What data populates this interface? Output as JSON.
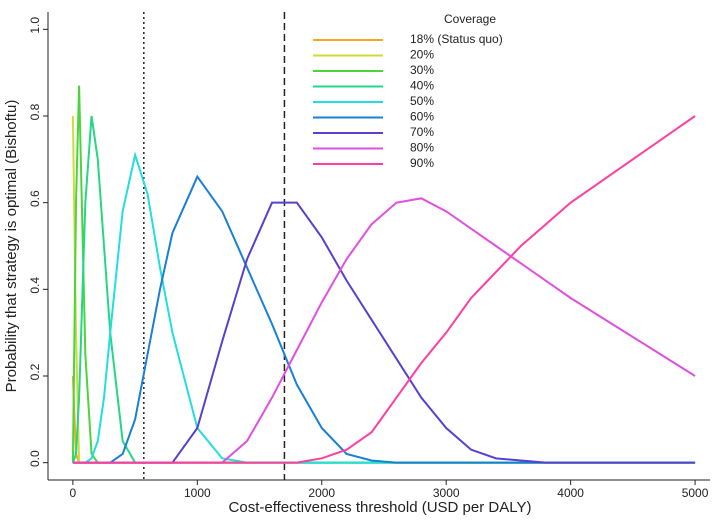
{
  "chart_data": {
    "type": "line",
    "xlabel": "Cost-effectiveness threshold (USD per DALY)",
    "ylabel": "Probability that strategy is optimal (Bishoftu)",
    "legend_title": "Coverage",
    "legend_position": "top-right",
    "x": [
      0,
      25,
      50,
      100,
      150,
      200,
      250,
      300,
      400,
      500,
      600,
      700,
      800,
      1000,
      1200,
      1400,
      1600,
      1800,
      2000,
      2200,
      2400,
      2600,
      2800,
      3000,
      3200,
      3400,
      3600,
      3800,
      4000,
      4500,
      5000
    ],
    "xlim": [
      -200,
      5120
    ],
    "xticks": [
      0,
      1000,
      2000,
      3000,
      4000,
      5000
    ],
    "ylim": [
      -0.04,
      1.04
    ],
    "yticks": [
      {
        "value": 0,
        "label": "0.0"
      },
      {
        "value": 0.2,
        "label": "0.2"
      },
      {
        "value": 0.4,
        "label": "0.4"
      },
      {
        "value": 0.6,
        "label": "0.6"
      },
      {
        "value": 0.8,
        "label": "0.8"
      },
      {
        "value": 1,
        "label": "1.0"
      }
    ],
    "vlines": [
      {
        "value": 570,
        "style": "dotted"
      },
      {
        "value": 1700,
        "style": "dashed"
      }
    ],
    "series": [
      {
        "name": "18% (Status quo)",
        "color": "#f5a623",
        "values": [
          0.2,
          0.02,
          0,
          0,
          0,
          0,
          0,
          0,
          0,
          0,
          0,
          0,
          0,
          0,
          0,
          0,
          0,
          0,
          0,
          0,
          0,
          0,
          0,
          0,
          0,
          0,
          0,
          0,
          0,
          0,
          0
        ]
      },
      {
        "name": "20%",
        "color": "#cddc39",
        "values": [
          0.8,
          0.3,
          0,
          0,
          0,
          0,
          0,
          0,
          0,
          0,
          0,
          0,
          0,
          0,
          0,
          0,
          0,
          0,
          0,
          0,
          0,
          0,
          0,
          0,
          0,
          0,
          0,
          0,
          0,
          0,
          0
        ]
      },
      {
        "name": "30%",
        "color": "#4cd43a",
        "values": [
          0,
          0.6,
          0.87,
          0.25,
          0.02,
          0,
          0,
          0,
          0,
          0,
          0,
          0,
          0,
          0,
          0,
          0,
          0,
          0,
          0,
          0,
          0,
          0,
          0,
          0,
          0,
          0,
          0,
          0,
          0,
          0,
          0
        ]
      },
      {
        "name": "40%",
        "color": "#22d884",
        "values": [
          0,
          0.02,
          0.15,
          0.6,
          0.8,
          0.7,
          0.5,
          0.3,
          0.05,
          0,
          0,
          0,
          0,
          0,
          0,
          0,
          0,
          0,
          0,
          0,
          0,
          0,
          0,
          0,
          0,
          0,
          0,
          0,
          0,
          0,
          0
        ]
      },
      {
        "name": "50%",
        "color": "#22dede",
        "values": [
          0,
          0,
          0,
          0,
          0.01,
          0.05,
          0.15,
          0.3,
          0.58,
          0.71,
          0.62,
          0.45,
          0.3,
          0.08,
          0.01,
          0,
          0,
          0,
          0,
          0,
          0,
          0,
          0,
          0,
          0,
          0,
          0,
          0,
          0,
          0,
          0
        ]
      },
      {
        "name": "60%",
        "color": "#1a7fd6",
        "values": [
          0,
          0,
          0,
          0,
          0,
          0,
          0,
          0,
          0.02,
          0.1,
          0.25,
          0.4,
          0.53,
          0.66,
          0.58,
          0.45,
          0.32,
          0.18,
          0.08,
          0.02,
          0.005,
          0,
          0,
          0,
          0,
          0,
          0,
          0,
          0,
          0,
          0
        ]
      },
      {
        "name": "70%",
        "color": "#5a3fd0",
        "values": [
          0,
          0,
          0,
          0,
          0,
          0,
          0,
          0,
          0,
          0,
          0,
          0,
          0,
          0.08,
          0.28,
          0.47,
          0.6,
          0.6,
          0.52,
          0.42,
          0.33,
          0.24,
          0.15,
          0.08,
          0.03,
          0.01,
          0.005,
          0,
          0,
          0,
          0
        ]
      },
      {
        "name": "80%",
        "color": "#e050e0",
        "values": [
          0,
          0,
          0,
          0,
          0,
          0,
          0,
          0,
          0,
          0,
          0,
          0,
          0,
          0,
          0,
          0.05,
          0.15,
          0.26,
          0.37,
          0.47,
          0.55,
          0.6,
          0.61,
          0.58,
          0.54,
          0.5,
          0.46,
          0.42,
          0.38,
          0.29,
          0.2
        ]
      },
      {
        "name": "90%",
        "color": "#ff3fa0",
        "values": [
          0,
          0,
          0,
          0,
          0,
          0,
          0,
          0,
          0,
          0,
          0,
          0,
          0,
          0,
          0,
          0,
          0,
          0,
          0.01,
          0.03,
          0.07,
          0.15,
          0.23,
          0.3,
          0.38,
          0.44,
          0.5,
          0.55,
          0.6,
          0.7,
          0.8
        ]
      }
    ]
  }
}
